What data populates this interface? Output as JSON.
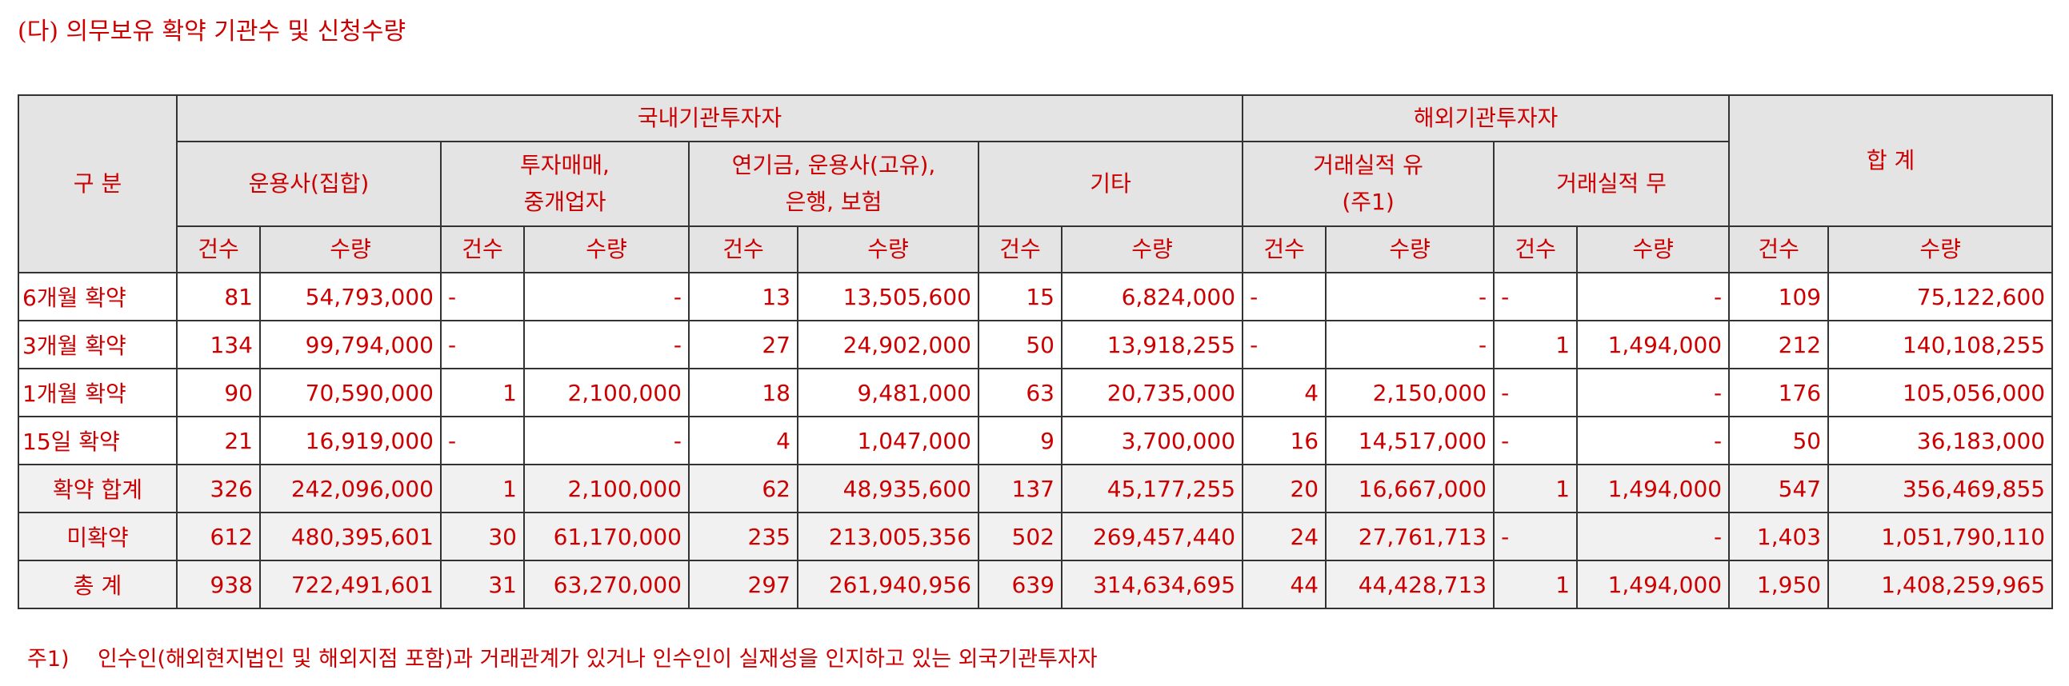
{
  "title": "(다) 의무보유 확약 기관수 및 신청수량",
  "header": {
    "category": "구 분",
    "domestic": "국내기관투자자",
    "foreign": "해외기관투자자",
    "total": "합 계",
    "sub": {
      "asset_mgmt": "운용사(집합)",
      "dealer_line1": "투자매매,",
      "dealer_line2": "중개업자",
      "pension_line1": "연기금, 운용사(고유),",
      "pension_line2": "은행, 보험",
      "other": "기타",
      "trade_yes_line1": "거래실적 유",
      "trade_yes_line2": "(주1)",
      "trade_no": "거래실적 무"
    },
    "count": "건수",
    "qty": "수량"
  },
  "rows": [
    {
      "label": "6개월 확약",
      "cells": [
        "81",
        "54,793,000",
        "-",
        "-",
        "13",
        "13,505,600",
        "15",
        "6,824,000",
        "-",
        "-",
        "-",
        "-",
        "109",
        "75,122,600"
      ]
    },
    {
      "label": "3개월 확약",
      "cells": [
        "134",
        "99,794,000",
        "-",
        "-",
        "27",
        "24,902,000",
        "50",
        "13,918,255",
        "-",
        "-",
        "1",
        "1,494,000",
        "212",
        "140,108,255"
      ]
    },
    {
      "label": "1개월 확약",
      "cells": [
        "90",
        "70,590,000",
        "1",
        "2,100,000",
        "18",
        "9,481,000",
        "63",
        "20,735,000",
        "4",
        "2,150,000",
        "-",
        "-",
        "176",
        "105,056,000"
      ]
    },
    {
      "label": "15일 확약",
      "cells": [
        "21",
        "16,919,000",
        "-",
        "-",
        "4",
        "1,047,000",
        "9",
        "3,700,000",
        "16",
        "14,517,000",
        "-",
        "-",
        "50",
        "36,183,000"
      ]
    },
    {
      "label": "확약 합계",
      "cells": [
        "326",
        "242,096,000",
        "1",
        "2,100,000",
        "62",
        "48,935,600",
        "137",
        "45,177,255",
        "20",
        "16,667,000",
        "1",
        "1,494,000",
        "547",
        "356,469,855"
      ]
    },
    {
      "label": "미확약",
      "cells": [
        "612",
        "480,395,601",
        "30",
        "61,170,000",
        "235",
        "213,005,356",
        "502",
        "269,457,440",
        "24",
        "27,761,713",
        "-",
        "-",
        "1,403",
        "1,051,790,110"
      ]
    },
    {
      "label": "총 계",
      "cells": [
        "938",
        "722,491,601",
        "31",
        "63,270,000",
        "297",
        "261,940,956",
        "639",
        "314,634,695",
        "44",
        "44,428,713",
        "1",
        "1,494,000",
        "1,950",
        "1,408,259,965"
      ]
    }
  ],
  "note": {
    "ref": "주1)",
    "text": "인수인(해외현지법인 및 해외지점 포함)과 거래관계가 있거나 인수인이 실재성을 인지하고 있는 외국기관투자자"
  }
}
